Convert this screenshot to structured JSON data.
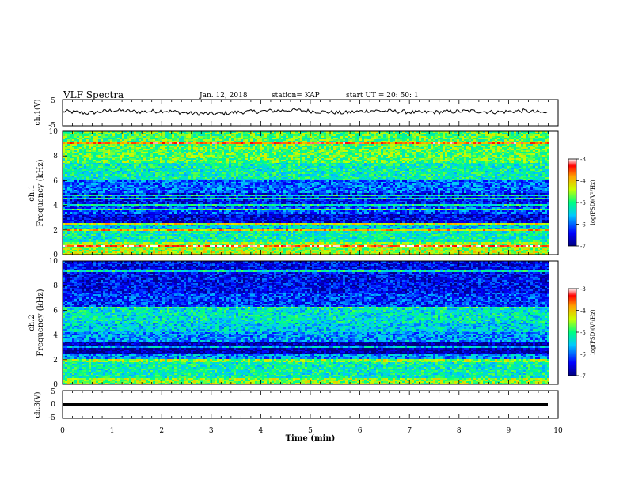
{
  "header": {
    "title": "VLF Spectra",
    "date": "Jan. 12, 2018",
    "station": "station= KAP",
    "start": "start  UT =   20: 50: 1"
  },
  "chart_data": [
    {
      "type": "line",
      "panel": "ch1-waveform",
      "ylabel": "ch.1(V)",
      "ylim": [
        -5,
        5
      ],
      "yticks": [
        "5",
        "-5"
      ],
      "xlim": [
        0,
        10
      ],
      "trace_level": [
        0.4,
        -0.3,
        0.8,
        0.2,
        0.6,
        -0.4,
        -0.6,
        0.1,
        0.5,
        0.9,
        0.3,
        -0.2,
        0.7,
        0.4,
        -0.1,
        0.2,
        0.5,
        0.1,
        0.6,
        -0.3
      ]
    },
    {
      "type": "heatmap",
      "panel": "ch1-spectrogram",
      "ylabel": "ch.1\nFrequency (kHz)",
      "ylim": [
        0,
        10
      ],
      "yticks": [
        "0",
        "2",
        "4",
        "6",
        "8",
        "10"
      ],
      "xlim": [
        0,
        10
      ],
      "colorbar": {
        "label": "log(PSD)(V²/Hz)",
        "range": [
          -7,
          -3
        ],
        "ticks": [
          "-3",
          "-4",
          "-5",
          "-6",
          "-7"
        ]
      },
      "bands_khz": [
        {
          "from": 0.0,
          "to": 0.3,
          "level": 0.65
        },
        {
          "from": 0.3,
          "to": 1.0,
          "level": 0.62
        },
        {
          "from": 1.0,
          "to": 2.0,
          "level": 0.45
        },
        {
          "from": 2.0,
          "to": 2.6,
          "level": 0.38
        },
        {
          "from": 2.6,
          "to": 3.3,
          "level": 0.12
        },
        {
          "from": 3.3,
          "to": 4.0,
          "level": 0.22
        },
        {
          "from": 4.0,
          "to": 5.0,
          "level": 0.15
        },
        {
          "from": 5.0,
          "to": 6.0,
          "level": 0.25
        },
        {
          "from": 6.0,
          "to": 7.5,
          "level": 0.45
        },
        {
          "from": 7.5,
          "to": 10.0,
          "level": 0.55
        }
      ]
    },
    {
      "type": "heatmap",
      "panel": "ch2-spectrogram",
      "ylabel": "ch.2\nFrequency (kHz)",
      "ylim": [
        0,
        10
      ],
      "yticks": [
        "0",
        "2",
        "4",
        "6",
        "8",
        "10"
      ],
      "xlim": [
        0,
        10
      ],
      "colorbar": {
        "label": "log(PSD)(V²/Hz)",
        "range": [
          -7,
          -3
        ],
        "ticks": [
          "-3",
          "-4",
          "-5",
          "-6",
          "-7"
        ]
      },
      "bands_khz": [
        {
          "from": 0.0,
          "to": 0.5,
          "level": 0.6
        },
        {
          "from": 0.5,
          "to": 1.8,
          "level": 0.45
        },
        {
          "from": 1.8,
          "to": 2.4,
          "level": 0.3
        },
        {
          "from": 2.4,
          "to": 3.5,
          "level": 0.05
        },
        {
          "from": 3.5,
          "to": 4.2,
          "level": 0.3
        },
        {
          "from": 4.2,
          "to": 5.0,
          "level": 0.38
        },
        {
          "from": 5.0,
          "to": 6.2,
          "level": 0.42
        },
        {
          "from": 6.2,
          "to": 7.5,
          "level": 0.2
        },
        {
          "from": 7.5,
          "to": 10.0,
          "level": 0.14
        }
      ]
    },
    {
      "type": "line",
      "panel": "ch3-waveform",
      "ylabel": "ch.3(V)",
      "ylim": [
        -5,
        5
      ],
      "yticks": [
        "5",
        "0",
        "-5"
      ],
      "xlim": [
        0,
        10
      ],
      "constant_value": 0
    }
  ],
  "xaxis": {
    "label": "Time (min)",
    "ticks": [
      "0",
      "1",
      "2",
      "3",
      "4",
      "5",
      "6",
      "7",
      "8",
      "9",
      "10"
    ]
  }
}
